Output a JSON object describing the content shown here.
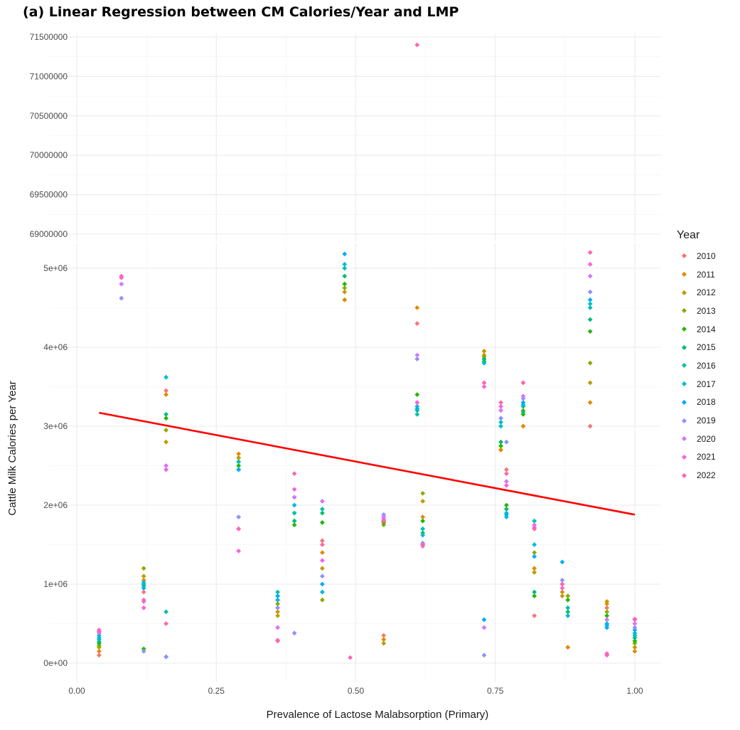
{
  "chart_data": {
    "type": "scatter",
    "title": "(a) Linear Regression between CM Calories/Year and LMP",
    "xlabel": "Prevalence of Lactose Malabsorption (Primary)",
    "ylabel": "Cattle Milk Calories per Year",
    "xlim": [
      0,
      1
    ],
    "x_ticks": [
      "0.00",
      "0.25",
      "0.50",
      "0.75",
      "1.00"
    ],
    "upper_panel": {
      "ylim": [
        68900000,
        71500000
      ],
      "y_ticks": [
        "69000000",
        "69500000",
        "70000000",
        "70500000",
        "71000000",
        "71500000"
      ]
    },
    "lower_panel": {
      "ylim": [
        0,
        5200000
      ],
      "y_ticks": [
        "0e+00",
        "1e+06",
        "2e+06",
        "3e+06",
        "4e+06",
        "5e+06"
      ]
    },
    "grid": true,
    "legend_title": "Year",
    "legend_position": "right",
    "regression_line": {
      "x": [
        0.04,
        1.0
      ],
      "y": [
        3170000,
        1880000
      ],
      "color": "#ff0000"
    },
    "series": [
      {
        "name": "2010",
        "color": "#F8766D",
        "points": [
          [
            0.04,
            100000
          ],
          [
            0.12,
            900000
          ],
          [
            0.16,
            3450000
          ],
          [
            0.29,
            2600000
          ],
          [
            0.36,
            700000
          ],
          [
            0.44,
            1550000
          ],
          [
            0.48,
            4600000
          ],
          [
            0.55,
            350000
          ],
          [
            0.61,
            4300000
          ],
          [
            0.62,
            1500000
          ],
          [
            0.73,
            3850000
          ],
          [
            0.76,
            2700000
          ],
          [
            0.77,
            2450000
          ],
          [
            0.8,
            3000000
          ],
          [
            0.82,
            600000
          ],
          [
            0.88,
            600000
          ],
          [
            0.92,
            3000000
          ],
          [
            0.95,
            700000
          ],
          [
            1.0,
            500000
          ]
        ]
      },
      {
        "name": "2011",
        "color": "#E18A00",
        "points": [
          [
            0.04,
            150000
          ],
          [
            0.12,
            1050000
          ],
          [
            0.16,
            3400000
          ],
          [
            0.29,
            2650000
          ],
          [
            0.36,
            650000
          ],
          [
            0.44,
            1400000
          ],
          [
            0.48,
            4600000
          ],
          [
            0.55,
            300000
          ],
          [
            0.61,
            4500000
          ],
          [
            0.62,
            1850000
          ],
          [
            0.73,
            3900000
          ],
          [
            0.76,
            2700000
          ],
          [
            0.8,
            3000000
          ],
          [
            0.82,
            1200000
          ],
          [
            0.87,
            900000
          ],
          [
            0.88,
            200000
          ],
          [
            0.92,
            3300000
          ],
          [
            0.95,
            780000
          ],
          [
            1.0,
            150000
          ]
        ]
      },
      {
        "name": "2012",
        "color": "#BE9C00",
        "points": [
          [
            0.04,
            200000
          ],
          [
            0.12,
            1100000
          ],
          [
            0.16,
            2800000
          ],
          [
            0.29,
            2600000
          ],
          [
            0.36,
            600000
          ],
          [
            0.44,
            1200000
          ],
          [
            0.48,
            4700000
          ],
          [
            0.55,
            250000
          ],
          [
            0.61,
            3300000
          ],
          [
            0.62,
            2050000
          ],
          [
            0.73,
            3950000
          ],
          [
            0.76,
            2750000
          ],
          [
            0.8,
            3250000
          ],
          [
            0.82,
            1150000
          ],
          [
            0.87,
            850000
          ],
          [
            0.92,
            3550000
          ],
          [
            0.95,
            750000
          ],
          [
            1.0,
            200000
          ]
        ]
      },
      {
        "name": "2013",
        "color": "#8CAB00",
        "points": [
          [
            0.04,
            220000
          ],
          [
            0.12,
            1200000
          ],
          [
            0.16,
            2950000
          ],
          [
            0.29,
            2550000
          ],
          [
            0.36,
            750000
          ],
          [
            0.39,
            1900000
          ],
          [
            0.44,
            800000
          ],
          [
            0.48,
            4750000
          ],
          [
            0.55,
            1750000
          ],
          [
            0.61,
            3250000
          ],
          [
            0.62,
            2150000
          ],
          [
            0.73,
            3880000
          ],
          [
            0.76,
            2800000
          ],
          [
            0.8,
            3200000
          ],
          [
            0.82,
            1400000
          ],
          [
            0.87,
            1000000
          ],
          [
            0.88,
            850000
          ],
          [
            0.92,
            3800000
          ],
          [
            0.95,
            650000
          ],
          [
            1.0,
            250000
          ]
        ]
      },
      {
        "name": "2014",
        "color": "#24B700",
        "points": [
          [
            0.04,
            250000
          ],
          [
            0.12,
            180000
          ],
          [
            0.16,
            3100000
          ],
          [
            0.29,
            2500000
          ],
          [
            0.36,
            800000
          ],
          [
            0.39,
            1750000
          ],
          [
            0.44,
            1780000
          ],
          [
            0.48,
            4800000
          ],
          [
            0.55,
            1780000
          ],
          [
            0.61,
            3400000
          ],
          [
            0.62,
            1800000
          ],
          [
            0.73,
            3820000
          ],
          [
            0.76,
            2750000
          ],
          [
            0.77,
            2000000
          ],
          [
            0.8,
            3150000
          ],
          [
            0.82,
            850000
          ],
          [
            0.88,
            800000
          ],
          [
            0.92,
            4200000
          ],
          [
            0.95,
            600000
          ],
          [
            1.0,
            280000
          ]
        ]
      },
      {
        "name": "2015",
        "color": "#00BE70",
        "points": [
          [
            0.04,
            270000
          ],
          [
            0.12,
            980000
          ],
          [
            0.16,
            3150000
          ],
          [
            0.29,
            2450000
          ],
          [
            0.36,
            850000
          ],
          [
            0.39,
            1800000
          ],
          [
            0.44,
            1900000
          ],
          [
            0.48,
            4900000
          ],
          [
            0.55,
            1800000
          ],
          [
            0.61,
            3200000
          ],
          [
            0.62,
            1650000
          ],
          [
            0.73,
            3850000
          ],
          [
            0.76,
            2800000
          ],
          [
            0.77,
            1950000
          ],
          [
            0.8,
            3180000
          ],
          [
            0.82,
            900000
          ],
          [
            0.88,
            650000
          ],
          [
            0.92,
            4350000
          ],
          [
            0.95,
            550000
          ],
          [
            1.0,
            320000
          ]
        ]
      },
      {
        "name": "2016",
        "color": "#00C1AB",
        "points": [
          [
            0.04,
            300000
          ],
          [
            0.12,
            1000000
          ],
          [
            0.16,
            650000
          ],
          [
            0.29,
            2550000
          ],
          [
            0.36,
            900000
          ],
          [
            0.39,
            1900000
          ],
          [
            0.44,
            1950000
          ],
          [
            0.48,
            5000000
          ],
          [
            0.55,
            1850000
          ],
          [
            0.61,
            3150000
          ],
          [
            0.62,
            1700000
          ],
          [
            0.73,
            3800000
          ],
          [
            0.76,
            3050000
          ],
          [
            0.77,
            1900000
          ],
          [
            0.8,
            3250000
          ],
          [
            0.82,
            1800000
          ],
          [
            0.88,
            700000
          ],
          [
            0.92,
            4500000
          ],
          [
            0.95,
            500000
          ],
          [
            1.0,
            350000
          ]
        ]
      },
      {
        "name": "2017",
        "color": "#00BBDA",
        "points": [
          [
            0.04,
            320000
          ],
          [
            0.12,
            1020000
          ],
          [
            0.16,
            3620000
          ],
          [
            0.29,
            2450000
          ],
          [
            0.36,
            800000
          ],
          [
            0.39,
            2000000
          ],
          [
            0.44,
            900000
          ],
          [
            0.48,
            5050000
          ],
          [
            0.55,
            1820000
          ],
          [
            0.61,
            3250000
          ],
          [
            0.62,
            1620000
          ],
          [
            0.73,
            3800000
          ],
          [
            0.76,
            3000000
          ],
          [
            0.77,
            1850000
          ],
          [
            0.8,
            3270000
          ],
          [
            0.82,
            1500000
          ],
          [
            0.88,
            600000
          ],
          [
            0.92,
            4550000
          ],
          [
            0.95,
            480000
          ],
          [
            1.0,
            380000
          ]
        ]
      },
      {
        "name": "2018",
        "color": "#00ACFC",
        "points": [
          [
            0.04,
            350000
          ],
          [
            0.12,
            950000
          ],
          [
            0.16,
            80000
          ],
          [
            0.29,
            2450000
          ],
          [
            0.36,
            850000
          ],
          [
            0.39,
            2100000
          ],
          [
            0.44,
            1000000
          ],
          [
            0.48,
            5180000
          ],
          [
            0.55,
            1850000
          ],
          [
            0.61,
            3220000
          ],
          [
            0.62,
            1500000
          ],
          [
            0.73,
            550000
          ],
          [
            0.76,
            3100000
          ],
          [
            0.77,
            1880000
          ],
          [
            0.8,
            3300000
          ],
          [
            0.82,
            1350000
          ],
          [
            0.87,
            1280000
          ],
          [
            0.92,
            4600000
          ],
          [
            0.95,
            450000
          ],
          [
            1.0,
            420000
          ]
        ]
      },
      {
        "name": "2019",
        "color": "#8B93FF",
        "points": [
          [
            0.04,
            380000
          ],
          [
            0.08,
            4620000
          ],
          [
            0.12,
            150000
          ],
          [
            0.16,
            80000
          ],
          [
            0.29,
            1850000
          ],
          [
            0.36,
            700000
          ],
          [
            0.39,
            380000
          ],
          [
            0.44,
            1100000
          ],
          [
            0.55,
            1880000
          ],
          [
            0.61,
            3850000
          ],
          [
            0.62,
            1520000
          ],
          [
            0.73,
            100000
          ],
          [
            0.76,
            3100000
          ],
          [
            0.77,
            2800000
          ],
          [
            0.8,
            3350000
          ],
          [
            0.82,
            1700000
          ],
          [
            0.87,
            1050000
          ],
          [
            0.92,
            4700000
          ],
          [
            0.95,
            100000
          ],
          [
            1.0,
            450000
          ]
        ]
      },
      {
        "name": "2020",
        "color": "#D575FE",
        "points": [
          [
            0.04,
            400000
          ],
          [
            0.08,
            4800000
          ],
          [
            0.12,
            800000
          ],
          [
            0.16,
            2500000
          ],
          [
            0.29,
            1700000
          ],
          [
            0.36,
            450000
          ],
          [
            0.39,
            2100000
          ],
          [
            0.44,
            2050000
          ],
          [
            0.55,
            1850000
          ],
          [
            0.61,
            3900000
          ],
          [
            0.62,
            1480000
          ],
          [
            0.73,
            450000
          ],
          [
            0.76,
            3200000
          ],
          [
            0.77,
            2300000
          ],
          [
            0.8,
            3380000
          ],
          [
            0.82,
            1750000
          ],
          [
            0.87,
            1000000
          ],
          [
            0.92,
            4900000
          ],
          [
            0.95,
            550000
          ],
          [
            1.0,
            500000
          ]
        ]
      },
      {
        "name": "2021",
        "color": "#F962DD",
        "points": [
          [
            0.04,
            420000
          ],
          [
            0.08,
            4880000
          ],
          [
            0.12,
            700000
          ],
          [
            0.16,
            2450000
          ],
          [
            0.29,
            1420000
          ],
          [
            0.36,
            290000
          ],
          [
            0.39,
            2200000
          ],
          [
            0.44,
            1300000
          ],
          [
            0.55,
            1820000
          ],
          [
            0.61,
            3300000
          ],
          [
            0.62,
            1500000
          ],
          [
            0.73,
            3500000
          ],
          [
            0.76,
            3250000
          ],
          [
            0.77,
            2250000
          ],
          [
            0.8,
            3550000
          ],
          [
            0.82,
            1720000
          ],
          [
            0.87,
            950000
          ],
          [
            0.92,
            5050000
          ],
          [
            0.95,
            100000
          ],
          [
            1.0,
            550000
          ]
        ]
      },
      {
        "name": "2022",
        "color": "#FF65AC",
        "points": [
          [
            0.04,
            400000
          ],
          [
            0.08,
            4900000
          ],
          [
            0.12,
            780000
          ],
          [
            0.16,
            500000
          ],
          [
            0.29,
            1700000
          ],
          [
            0.36,
            280000
          ],
          [
            0.39,
            2400000
          ],
          [
            0.44,
            1500000
          ],
          [
            0.49,
            70000
          ],
          [
            0.55,
            1800000
          ],
          [
            0.61,
            71400000
          ],
          [
            0.62,
            1500000
          ],
          [
            0.73,
            3550000
          ],
          [
            0.76,
            3300000
          ],
          [
            0.77,
            2400000
          ],
          [
            0.8,
            3550000
          ],
          [
            0.82,
            1700000
          ],
          [
            0.87,
            1000000
          ],
          [
            0.92,
            5200000
          ],
          [
            0.95,
            120000
          ],
          [
            1.0,
            560000
          ]
        ]
      }
    ]
  }
}
